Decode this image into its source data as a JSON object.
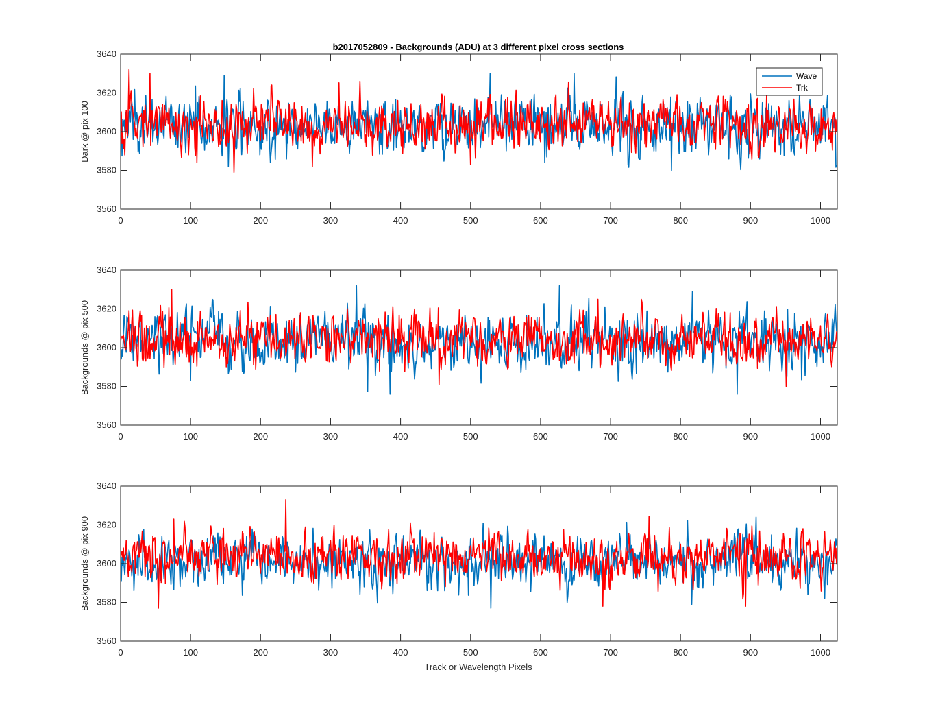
{
  "figure": {
    "title": "b2017052809 - Backgrounds (ADU) at 3 different pixel cross sections",
    "xlabel": "Track or Wavelength Pixels"
  },
  "chart_data": [
    {
      "type": "line",
      "ylabel": "Dark @ pix 100",
      "xlim": [
        0,
        1024
      ],
      "ylim": [
        3560,
        3640
      ],
      "xticks": [
        0,
        100,
        200,
        300,
        400,
        500,
        600,
        700,
        800,
        900,
        1000
      ],
      "yticks": [
        3560,
        3580,
        3600,
        3620,
        3640
      ],
      "legend": {
        "position": "top-right",
        "entries": [
          "Wave",
          "Trk"
        ]
      },
      "series": [
        {
          "name": "Wave",
          "color": "#0072BD",
          "mean": 3603.5,
          "noise_sd": 7.5,
          "n_points": 1024,
          "spikes": [
            [
              148,
              3629
            ],
            [
              528,
              3630
            ],
            [
              648,
              3630
            ],
            [
              787,
              3580
            ],
            [
              154,
              3582
            ],
            [
              606,
              3584
            ]
          ]
        },
        {
          "name": "Trk",
          "color": "#FF0000",
          "mean": 3604,
          "noise_sd": 6.5,
          "n_points": 1024,
          "spikes": [
            [
              12,
              3632
            ],
            [
              42,
              3630
            ],
            [
              342,
              3626
            ],
            [
              162,
              3579
            ],
            [
              109,
              3584
            ],
            [
              500,
              3583
            ]
          ]
        }
      ]
    },
    {
      "type": "line",
      "ylabel": "Backgrounds @ pix 500",
      "xlim": [
        0,
        1024
      ],
      "ylim": [
        3560,
        3640
      ],
      "xticks": [
        0,
        100,
        200,
        300,
        400,
        500,
        600,
        700,
        800,
        900,
        1000
      ],
      "yticks": [
        3560,
        3580,
        3600,
        3620,
        3640
      ],
      "series": [
        {
          "name": "Wave",
          "color": "#0072BD",
          "mean": 3603,
          "noise_sd": 7.5,
          "n_points": 1024,
          "spikes": [
            [
              337,
              3632
            ],
            [
              627,
              3632
            ],
            [
              385,
              3576
            ],
            [
              881,
              3576
            ],
            [
              817,
              3629
            ]
          ]
        },
        {
          "name": "Trk",
          "color": "#FF0000",
          "mean": 3604,
          "noise_sd": 6.5,
          "n_points": 1024,
          "spikes": [
            [
              73,
              3630
            ],
            [
              455,
              3581
            ],
            [
              951,
              3580
            ],
            [
              682,
              3625
            ]
          ]
        }
      ]
    },
    {
      "type": "line",
      "ylabel": "Backgrounds @ pix 900",
      "xlim": [
        0,
        1024
      ],
      "ylim": [
        3560,
        3640
      ],
      "xticks": [
        0,
        100,
        200,
        300,
        400,
        500,
        600,
        700,
        800,
        900,
        1000
      ],
      "yticks": [
        3560,
        3580,
        3600,
        3620,
        3640
      ],
      "series": [
        {
          "name": "Wave",
          "color": "#0072BD",
          "mean": 3601,
          "noise_sd": 7,
          "n_points": 1024,
          "spikes": [
            [
              908,
              3624
            ],
            [
              529,
              3577
            ],
            [
              816,
              3579
            ]
          ]
        },
        {
          "name": "Trk",
          "color": "#FF0000",
          "mean": 3604,
          "noise_sd": 6.5,
          "n_points": 1024,
          "spikes": [
            [
              236,
              3633
            ],
            [
              54,
              3577
            ],
            [
              689,
              3578
            ],
            [
              893,
              3578
            ],
            [
              76,
              3623
            ]
          ]
        }
      ]
    }
  ]
}
